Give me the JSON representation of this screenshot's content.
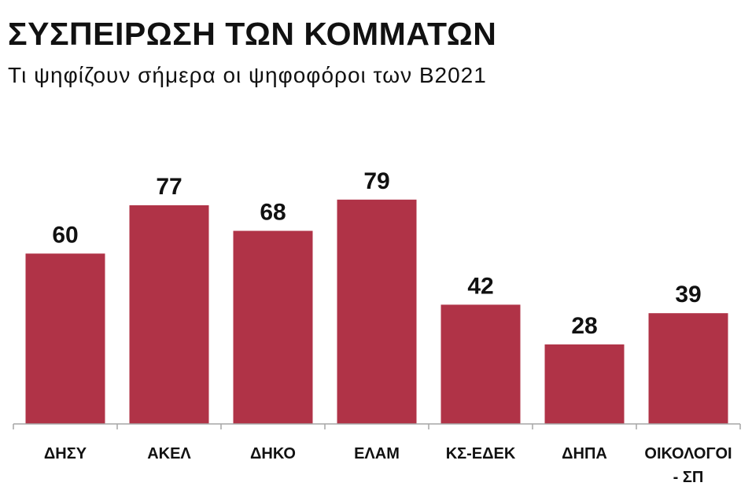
{
  "chart_data": {
    "type": "bar",
    "title": "ΣΥΣΠΕΙΡΩΣΗ ΤΩΝ ΚΟΜΜΑΤΩΝ",
    "subtitle": "Τι ψηφίζουν σήμερα οι ψηφοφόροι των Β2021",
    "categories": [
      [
        "ΔΗΣΥ"
      ],
      [
        "ΑΚΕΛ"
      ],
      [
        "ΔΗΚΟ"
      ],
      [
        "ΕΛΑΜ"
      ],
      [
        "ΚΣ-ΕΔΕΚ"
      ],
      [
        "ΔΗΠΑ"
      ],
      [
        "ΟΙΚΟΛΟΓΟΙ",
        "- ΣΠ"
      ]
    ],
    "values": [
      60,
      77,
      68,
      79,
      42,
      28,
      39
    ],
    "ylim": [
      0,
      100
    ],
    "grid": false,
    "colors": {
      "bar": "#b03347",
      "axis": "#a6a6a6",
      "text": "#111111"
    }
  }
}
